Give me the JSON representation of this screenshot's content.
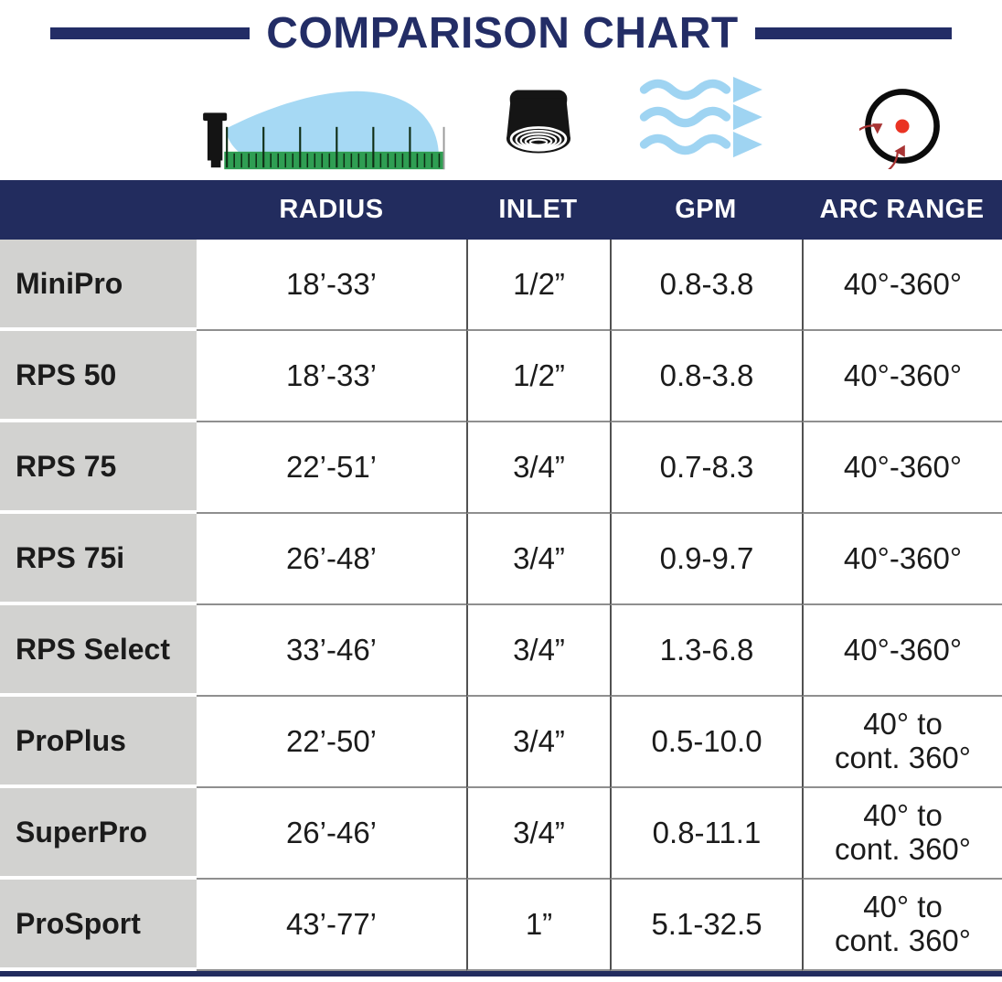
{
  "header": {
    "title": "COMPARISON CHART"
  },
  "columns": {
    "product": "",
    "radius": "RADIUS",
    "inlet": "INLET",
    "gpm": "GPM",
    "arc": "ARC RANGE"
  },
  "icons": {
    "radius": "sprinkler-spray-over-ruler-icon",
    "inlet": "threaded-inlet-cap-icon",
    "gpm": "water-flow-wave-arrows-icon",
    "arc": "rotation-arc-circle-icon"
  },
  "rows": [
    {
      "product": "MiniPro",
      "radius": "18’-33’",
      "inlet": "1/2”",
      "gpm": "0.8-3.8",
      "arc_line1": "40°-360°",
      "arc_line2": ""
    },
    {
      "product": "RPS 50",
      "radius": "18’-33’",
      "inlet": "1/2”",
      "gpm": "0.8-3.8",
      "arc_line1": "40°-360°",
      "arc_line2": ""
    },
    {
      "product": "RPS 75",
      "radius": "22’-51’",
      "inlet": "3/4”",
      "gpm": "0.7-8.3",
      "arc_line1": "40°-360°",
      "arc_line2": ""
    },
    {
      "product": "RPS 75i",
      "radius": "26’-48’",
      "inlet": "3/4”",
      "gpm": "0.9-9.7",
      "arc_line1": "40°-360°",
      "arc_line2": ""
    },
    {
      "product": "RPS Select",
      "radius": "33’-46’",
      "inlet": "3/4”",
      "gpm": "1.3-6.8",
      "arc_line1": "40°-360°",
      "arc_line2": ""
    },
    {
      "product": "ProPlus",
      "radius": "22’-50’",
      "inlet": "3/4”",
      "gpm": "0.5-10.0",
      "arc_line1": "40° to",
      "arc_line2": "cont. 360°"
    },
    {
      "product": "SuperPro",
      "radius": "26’-46’",
      "inlet": "3/4”",
      "gpm": "0.8-11.1",
      "arc_line1": "40° to",
      "arc_line2": "cont. 360°"
    },
    {
      "product": "ProSport",
      "radius": "43’-77’",
      "inlet": "1”",
      "gpm": "5.1-32.5",
      "arc_line1": "40° to",
      "arc_line2": "cont. 360°"
    }
  ],
  "colors": {
    "navy": "#222c5e",
    "row_label_gray": "#d2d2d0",
    "spray_blue": "#a6d9f4",
    "ruler_green": "#2f9e53",
    "dot_red": "#ea3323",
    "arc_red": "#a83434",
    "text": "#1b1b1b"
  }
}
